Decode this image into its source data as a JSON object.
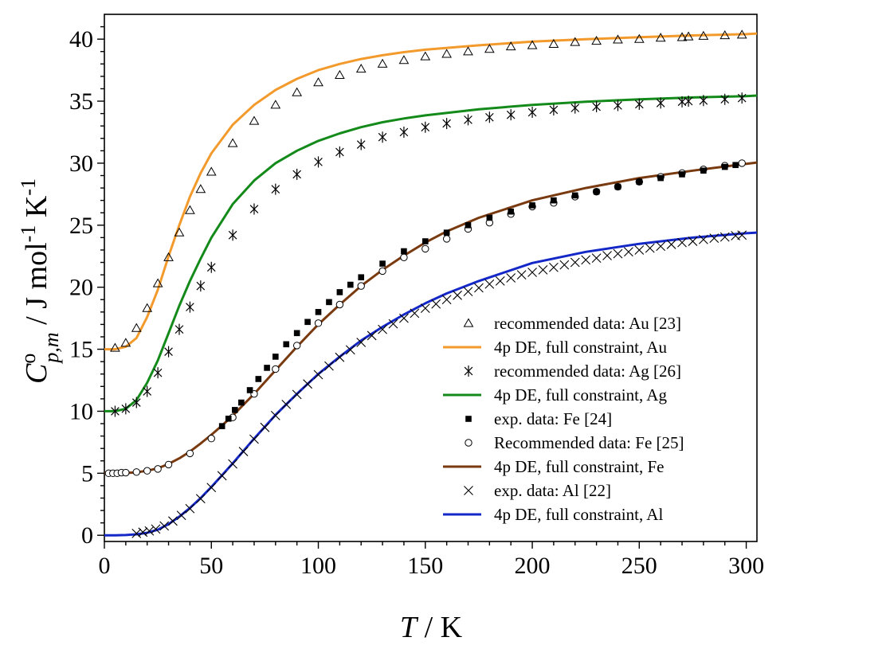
{
  "chart_data": {
    "type": "scatter",
    "title": "",
    "x_axis": {
      "label_italic": "T",
      "label_rest": " / K",
      "range": [
        0,
        305
      ],
      "ticks": [
        0,
        50,
        100,
        150,
        200,
        250,
        300
      ],
      "tick_labels": [
        "0",
        "50",
        "100",
        "150",
        "200",
        "250",
        "300"
      ],
      "minor_step": 10
    },
    "y_axis": {
      "label_base": "C",
      "label_sup": "o",
      "label_sub": "p,m",
      "label_unit": " / J mol",
      "label_exp1": "-1",
      "label_unit2": " K",
      "label_exp2": "-1",
      "range": [
        -0.5,
        42
      ],
      "ticks": [
        0,
        5,
        10,
        15,
        20,
        25,
        30,
        35,
        40
      ],
      "tick_labels": [
        "0",
        "5",
        "10",
        "15",
        "20",
        "25",
        "30",
        "35",
        "40"
      ],
      "minor_step": 1
    },
    "grid": false,
    "legend_position": "lower-right",
    "legend": [
      {
        "label": "recommended data: Au [23]",
        "kind": "marker",
        "marker": "triangle",
        "color": "#000000"
      },
      {
        "label": "4p DE, full constraint, Au",
        "kind": "line",
        "color": "#f39a2d"
      },
      {
        "label": "recommended data: Ag [26]",
        "kind": "marker",
        "marker": "asterisk",
        "color": "#000000"
      },
      {
        "label": "4p DE, full constraint, Ag",
        "kind": "line",
        "color": "#138a1a"
      },
      {
        "label": "exp. data: Fe [24]",
        "kind": "marker",
        "marker": "square",
        "color": "#000000"
      },
      {
        "label": "Recommended data: Fe [25]",
        "kind": "marker",
        "marker": "circle",
        "color": "#000000"
      },
      {
        "label": "4p DE, full constraint, Fe",
        "kind": "line",
        "color": "#7a3a10"
      },
      {
        "label": "exp. data: Al [22]",
        "kind": "marker",
        "marker": "cross",
        "color": "#000000"
      },
      {
        "label": "4p DE, full constraint, Al",
        "kind": "line",
        "color": "#1428c8"
      }
    ],
    "series": [
      {
        "kind": "line",
        "color": "#f39a2d",
        "x": [
          0,
          5,
          10,
          15,
          20,
          25,
          30,
          35,
          40,
          45,
          50,
          60,
          70,
          80,
          90,
          100,
          110,
          120,
          130,
          140,
          150,
          175,
          200,
          225,
          250,
          275,
          300,
          305
        ],
        "y": [
          15.0,
          15.0,
          15.2,
          15.9,
          17.6,
          19.8,
          22.5,
          25.0,
          27.3,
          29.2,
          30.8,
          33.1,
          34.7,
          35.9,
          36.8,
          37.5,
          38.0,
          38.4,
          38.7,
          38.95,
          39.15,
          39.5,
          39.8,
          40.0,
          40.15,
          40.3,
          40.4,
          40.45
        ]
      },
      {
        "kind": "marker",
        "marker": "triangle",
        "x": [
          5,
          10,
          15,
          20,
          25,
          30,
          35,
          40,
          45,
          50,
          60,
          70,
          80,
          90,
          100,
          110,
          120,
          130,
          140,
          150,
          160,
          170,
          180,
          190,
          200,
          210,
          220,
          230,
          240,
          250,
          260,
          270,
          273,
          280,
          290,
          298
        ],
        "y": [
          15.1,
          15.5,
          16.7,
          18.3,
          20.3,
          22.4,
          24.4,
          26.2,
          27.9,
          29.3,
          31.6,
          33.4,
          34.7,
          35.7,
          36.5,
          37.1,
          37.6,
          38.0,
          38.3,
          38.6,
          38.8,
          39.0,
          39.2,
          39.4,
          39.5,
          39.6,
          39.75,
          39.85,
          39.95,
          40.0,
          40.1,
          40.15,
          40.2,
          40.25,
          40.3,
          40.35
        ]
      },
      {
        "kind": "line",
        "color": "#138a1a",
        "x": [
          0,
          5,
          10,
          15,
          20,
          25,
          30,
          35,
          40,
          45,
          50,
          60,
          70,
          80,
          90,
          100,
          110,
          120,
          130,
          140,
          150,
          175,
          200,
          225,
          250,
          275,
          300,
          305
        ],
        "y": [
          10.0,
          10.0,
          10.2,
          10.9,
          12.3,
          14.1,
          16.3,
          18.5,
          20.5,
          22.3,
          24.0,
          26.7,
          28.6,
          30.0,
          31.0,
          31.8,
          32.4,
          32.9,
          33.3,
          33.6,
          33.85,
          34.35,
          34.7,
          34.95,
          35.15,
          35.3,
          35.4,
          35.45
        ]
      },
      {
        "kind": "marker",
        "marker": "asterisk",
        "x": [
          5,
          10,
          15,
          20,
          25,
          30,
          35,
          40,
          45,
          50,
          60,
          70,
          80,
          90,
          100,
          110,
          120,
          130,
          140,
          150,
          160,
          170,
          180,
          190,
          200,
          210,
          220,
          230,
          240,
          250,
          260,
          270,
          273,
          280,
          290,
          298
        ],
        "y": [
          10.0,
          10.2,
          10.7,
          11.6,
          13.1,
          14.8,
          16.6,
          18.4,
          20.1,
          21.6,
          24.2,
          26.3,
          27.9,
          29.1,
          30.1,
          30.9,
          31.5,
          32.1,
          32.5,
          32.9,
          33.2,
          33.5,
          33.7,
          33.9,
          34.1,
          34.3,
          34.45,
          34.55,
          34.65,
          34.75,
          34.85,
          34.95,
          35.0,
          35.05,
          35.15,
          35.25
        ]
      },
      {
        "kind": "line",
        "color": "#7a3a10",
        "x": [
          0,
          5,
          10,
          15,
          20,
          25,
          30,
          35,
          40,
          45,
          50,
          55,
          60,
          70,
          80,
          90,
          100,
          110,
          120,
          130,
          140,
          150,
          160,
          175,
          200,
          225,
          250,
          275,
          300,
          305
        ],
        "y": [
          5.0,
          5.0,
          5.02,
          5.08,
          5.2,
          5.4,
          5.75,
          6.2,
          6.75,
          7.4,
          8.1,
          8.85,
          9.65,
          11.4,
          13.3,
          15.2,
          17.0,
          18.6,
          20.1,
          21.4,
          22.55,
          23.6,
          24.5,
          25.6,
          27.0,
          28.0,
          28.8,
          29.4,
          29.95,
          30.05
        ]
      },
      {
        "kind": "marker",
        "marker": "circle",
        "x": [
          2,
          4,
          6,
          8,
          10,
          15,
          20,
          25,
          30,
          40,
          50,
          60,
          70,
          80,
          90,
          100,
          110,
          120,
          130,
          140,
          150,
          160,
          170,
          180,
          190,
          200,
          210,
          220,
          230,
          240,
          250,
          260,
          270,
          280,
          290,
          298
        ],
        "y": [
          5.0,
          5.0,
          5.0,
          5.05,
          5.05,
          5.1,
          5.2,
          5.35,
          5.7,
          6.6,
          7.8,
          9.5,
          11.4,
          13.4,
          15.3,
          17.1,
          18.6,
          20.1,
          21.3,
          22.4,
          23.1,
          23.9,
          24.7,
          25.2,
          25.9,
          26.5,
          26.8,
          27.3,
          27.7,
          28.1,
          28.5,
          28.9,
          29.2,
          29.5,
          29.8,
          30.0
        ]
      },
      {
        "kind": "marker",
        "marker": "square",
        "x": [
          55,
          58,
          61,
          64,
          68,
          72,
          76,
          80,
          85,
          90,
          95,
          100,
          105,
          110,
          115,
          120,
          130,
          140,
          150,
          160,
          170,
          180,
          190,
          200,
          210,
          220,
          230,
          240,
          250,
          260,
          270,
          280,
          290,
          295
        ],
        "y": [
          8.8,
          9.4,
          10.1,
          10.7,
          11.7,
          12.6,
          13.5,
          14.4,
          15.4,
          16.3,
          17.2,
          18.0,
          18.8,
          19.6,
          20.2,
          20.8,
          21.9,
          22.9,
          23.7,
          24.4,
          25.0,
          25.6,
          26.1,
          26.6,
          27.0,
          27.4,
          27.7,
          28.1,
          28.5,
          28.8,
          29.1,
          29.4,
          29.7,
          29.85
        ]
      },
      {
        "kind": "line",
        "color": "#1428c8",
        "x": [
          0,
          5,
          10,
          15,
          20,
          25,
          30,
          35,
          40,
          45,
          50,
          55,
          60,
          70,
          80,
          90,
          100,
          110,
          120,
          130,
          140,
          150,
          160,
          175,
          200,
          225,
          250,
          275,
          300,
          305
        ],
        "y": [
          0.0,
          0.0,
          0.02,
          0.08,
          0.2,
          0.45,
          0.9,
          1.5,
          2.2,
          3.0,
          3.9,
          4.85,
          5.8,
          7.8,
          9.7,
          11.4,
          13.0,
          14.4,
          15.7,
          16.8,
          17.8,
          18.7,
          19.5,
          20.5,
          21.95,
          22.85,
          23.5,
          24.0,
          24.35,
          24.4
        ]
      },
      {
        "kind": "marker",
        "marker": "cross",
        "x": [
          15,
          18,
          21,
          24,
          28,
          32,
          36,
          40,
          45,
          50,
          55,
          60,
          65,
          70,
          75,
          80,
          85,
          90,
          95,
          100,
          105,
          110,
          115,
          120,
          125,
          130,
          135,
          140,
          145,
          150,
          155,
          160,
          165,
          170,
          175,
          180,
          185,
          190,
          195,
          200,
          205,
          210,
          215,
          220,
          225,
          230,
          235,
          240,
          245,
          250,
          255,
          260,
          265,
          270,
          275,
          280,
          285,
          290,
          295,
          298
        ],
        "y": [
          0.15,
          0.25,
          0.35,
          0.5,
          0.75,
          1.15,
          1.6,
          2.15,
          2.95,
          3.85,
          4.8,
          5.75,
          6.75,
          7.75,
          8.7,
          9.65,
          10.55,
          11.35,
          12.2,
          12.95,
          13.65,
          14.35,
          14.95,
          15.55,
          16.1,
          16.6,
          17.05,
          17.5,
          17.9,
          18.3,
          18.65,
          19.0,
          19.35,
          19.65,
          19.95,
          20.25,
          20.5,
          20.75,
          21.0,
          21.2,
          21.4,
          21.6,
          21.8,
          22.0,
          22.2,
          22.35,
          22.55,
          22.7,
          22.85,
          23.0,
          23.15,
          23.3,
          23.45,
          23.6,
          23.7,
          23.85,
          23.95,
          24.05,
          24.15,
          24.2
        ]
      }
    ]
  }
}
